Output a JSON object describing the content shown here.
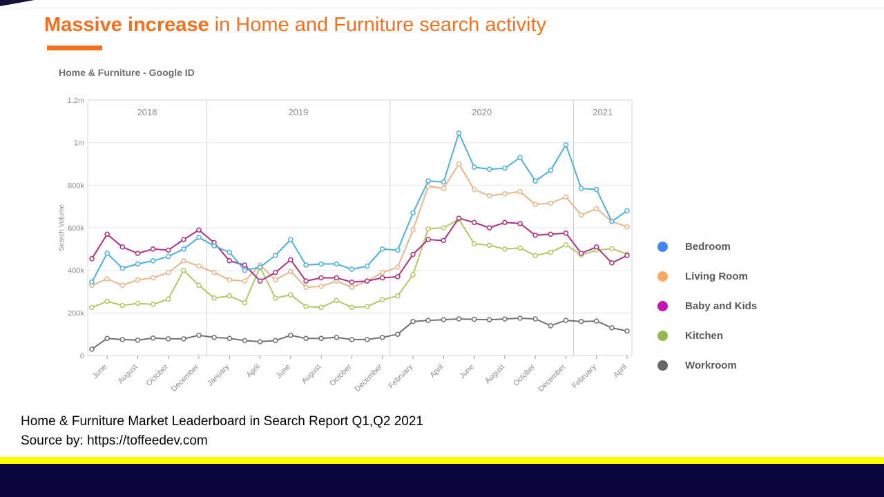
{
  "slide": {
    "title_bold": "Massive increase",
    "title_rest": " in Home and Furniture search activity",
    "title_color": "#f3701e",
    "caption_line1": "Home & Furniture Market Leaderboard in Search Report Q1,Q2 2021",
    "caption_line2": "Source by: https://toffeedev.com",
    "bar_yellow_color": "#fdfd00",
    "bar_navy_color": "#0b0540"
  },
  "chart_data": {
    "type": "line",
    "title": "Home & Furniture - Google ID",
    "ylabel": "Search Volume",
    "y_max_k": 1200,
    "y_ticks": [
      {
        "label": "1.2m",
        "v": 1200
      },
      {
        "label": "1m",
        "v": 1000
      },
      {
        "label": "800k",
        "v": 800
      },
      {
        "label": "600k",
        "v": 600
      },
      {
        "label": "400k",
        "v": 400
      },
      {
        "label": "200k",
        "v": 200
      },
      {
        "label": "0",
        "v": 0
      }
    ],
    "x_tick_labels": [
      "June",
      "August",
      "October",
      "December",
      "January",
      "April",
      "June",
      "August",
      "October",
      "December",
      "February",
      "April",
      "June",
      "August",
      "October",
      "December",
      "February",
      "April"
    ],
    "year_labels": [
      "2018",
      "2019",
      "2020",
      "2021"
    ],
    "year_separator_after_index": [
      7,
      19,
      31
    ],
    "values_unit": "thousands (k) of search volume, monthly points May 2018 - Apr 2021",
    "grid": true,
    "legend_position": "right",
    "draw_order": [
      1,
      3,
      2,
      0,
      4
    ],
    "series": [
      {
        "name": "Bedroom",
        "line_color": "#4bb0de",
        "legend_color": "#4285f4",
        "values": [
          345,
          480,
          410,
          430,
          445,
          465,
          500,
          555,
          515,
          485,
          400,
          415,
          470,
          545,
          425,
          430,
          430,
          405,
          420,
          500,
          495,
          670,
          820,
          815,
          1045,
          885,
          875,
          880,
          930,
          820,
          870,
          990,
          785,
          780,
          630,
          680
        ]
      },
      {
        "name": "Living Room",
        "line_color": "#e6b685",
        "legend_color": "#f8a85f",
        "values": [
          330,
          360,
          330,
          355,
          365,
          390,
          445,
          420,
          390,
          355,
          350,
          425,
          355,
          395,
          320,
          325,
          350,
          320,
          350,
          390,
          415,
          590,
          795,
          785,
          900,
          780,
          750,
          760,
          770,
          710,
          715,
          745,
          660,
          690,
          630,
          605
        ]
      },
      {
        "name": "Baby and Kids",
        "line_color": "#ae2f7f",
        "legend_color": "#c214b7",
        "values": [
          455,
          570,
          510,
          480,
          500,
          495,
          545,
          590,
          530,
          445,
          425,
          350,
          390,
          450,
          350,
          365,
          365,
          345,
          350,
          365,
          370,
          475,
          545,
          540,
          645,
          625,
          600,
          625,
          620,
          565,
          570,
          575,
          480,
          510,
          435,
          470
        ]
      },
      {
        "name": "Kitchen",
        "line_color": "#aec960",
        "legend_color": "#8fba4d",
        "values": [
          225,
          255,
          235,
          245,
          240,
          265,
          400,
          330,
          270,
          280,
          248,
          415,
          270,
          285,
          230,
          226,
          259,
          226,
          230,
          262,
          280,
          380,
          595,
          600,
          640,
          525,
          518,
          500,
          505,
          470,
          485,
          520,
          472,
          495,
          502,
          476
        ]
      },
      {
        "name": "Workroom",
        "line_color": "#707070",
        "legend_color": "#666666",
        "values": [
          30,
          80,
          75,
          72,
          82,
          78,
          78,
          95,
          85,
          80,
          70,
          65,
          70,
          95,
          80,
          80,
          85,
          75,
          75,
          85,
          100,
          160,
          165,
          168,
          172,
          170,
          168,
          172,
          175,
          172,
          140,
          165,
          160,
          162,
          130,
          115
        ]
      }
    ]
  }
}
